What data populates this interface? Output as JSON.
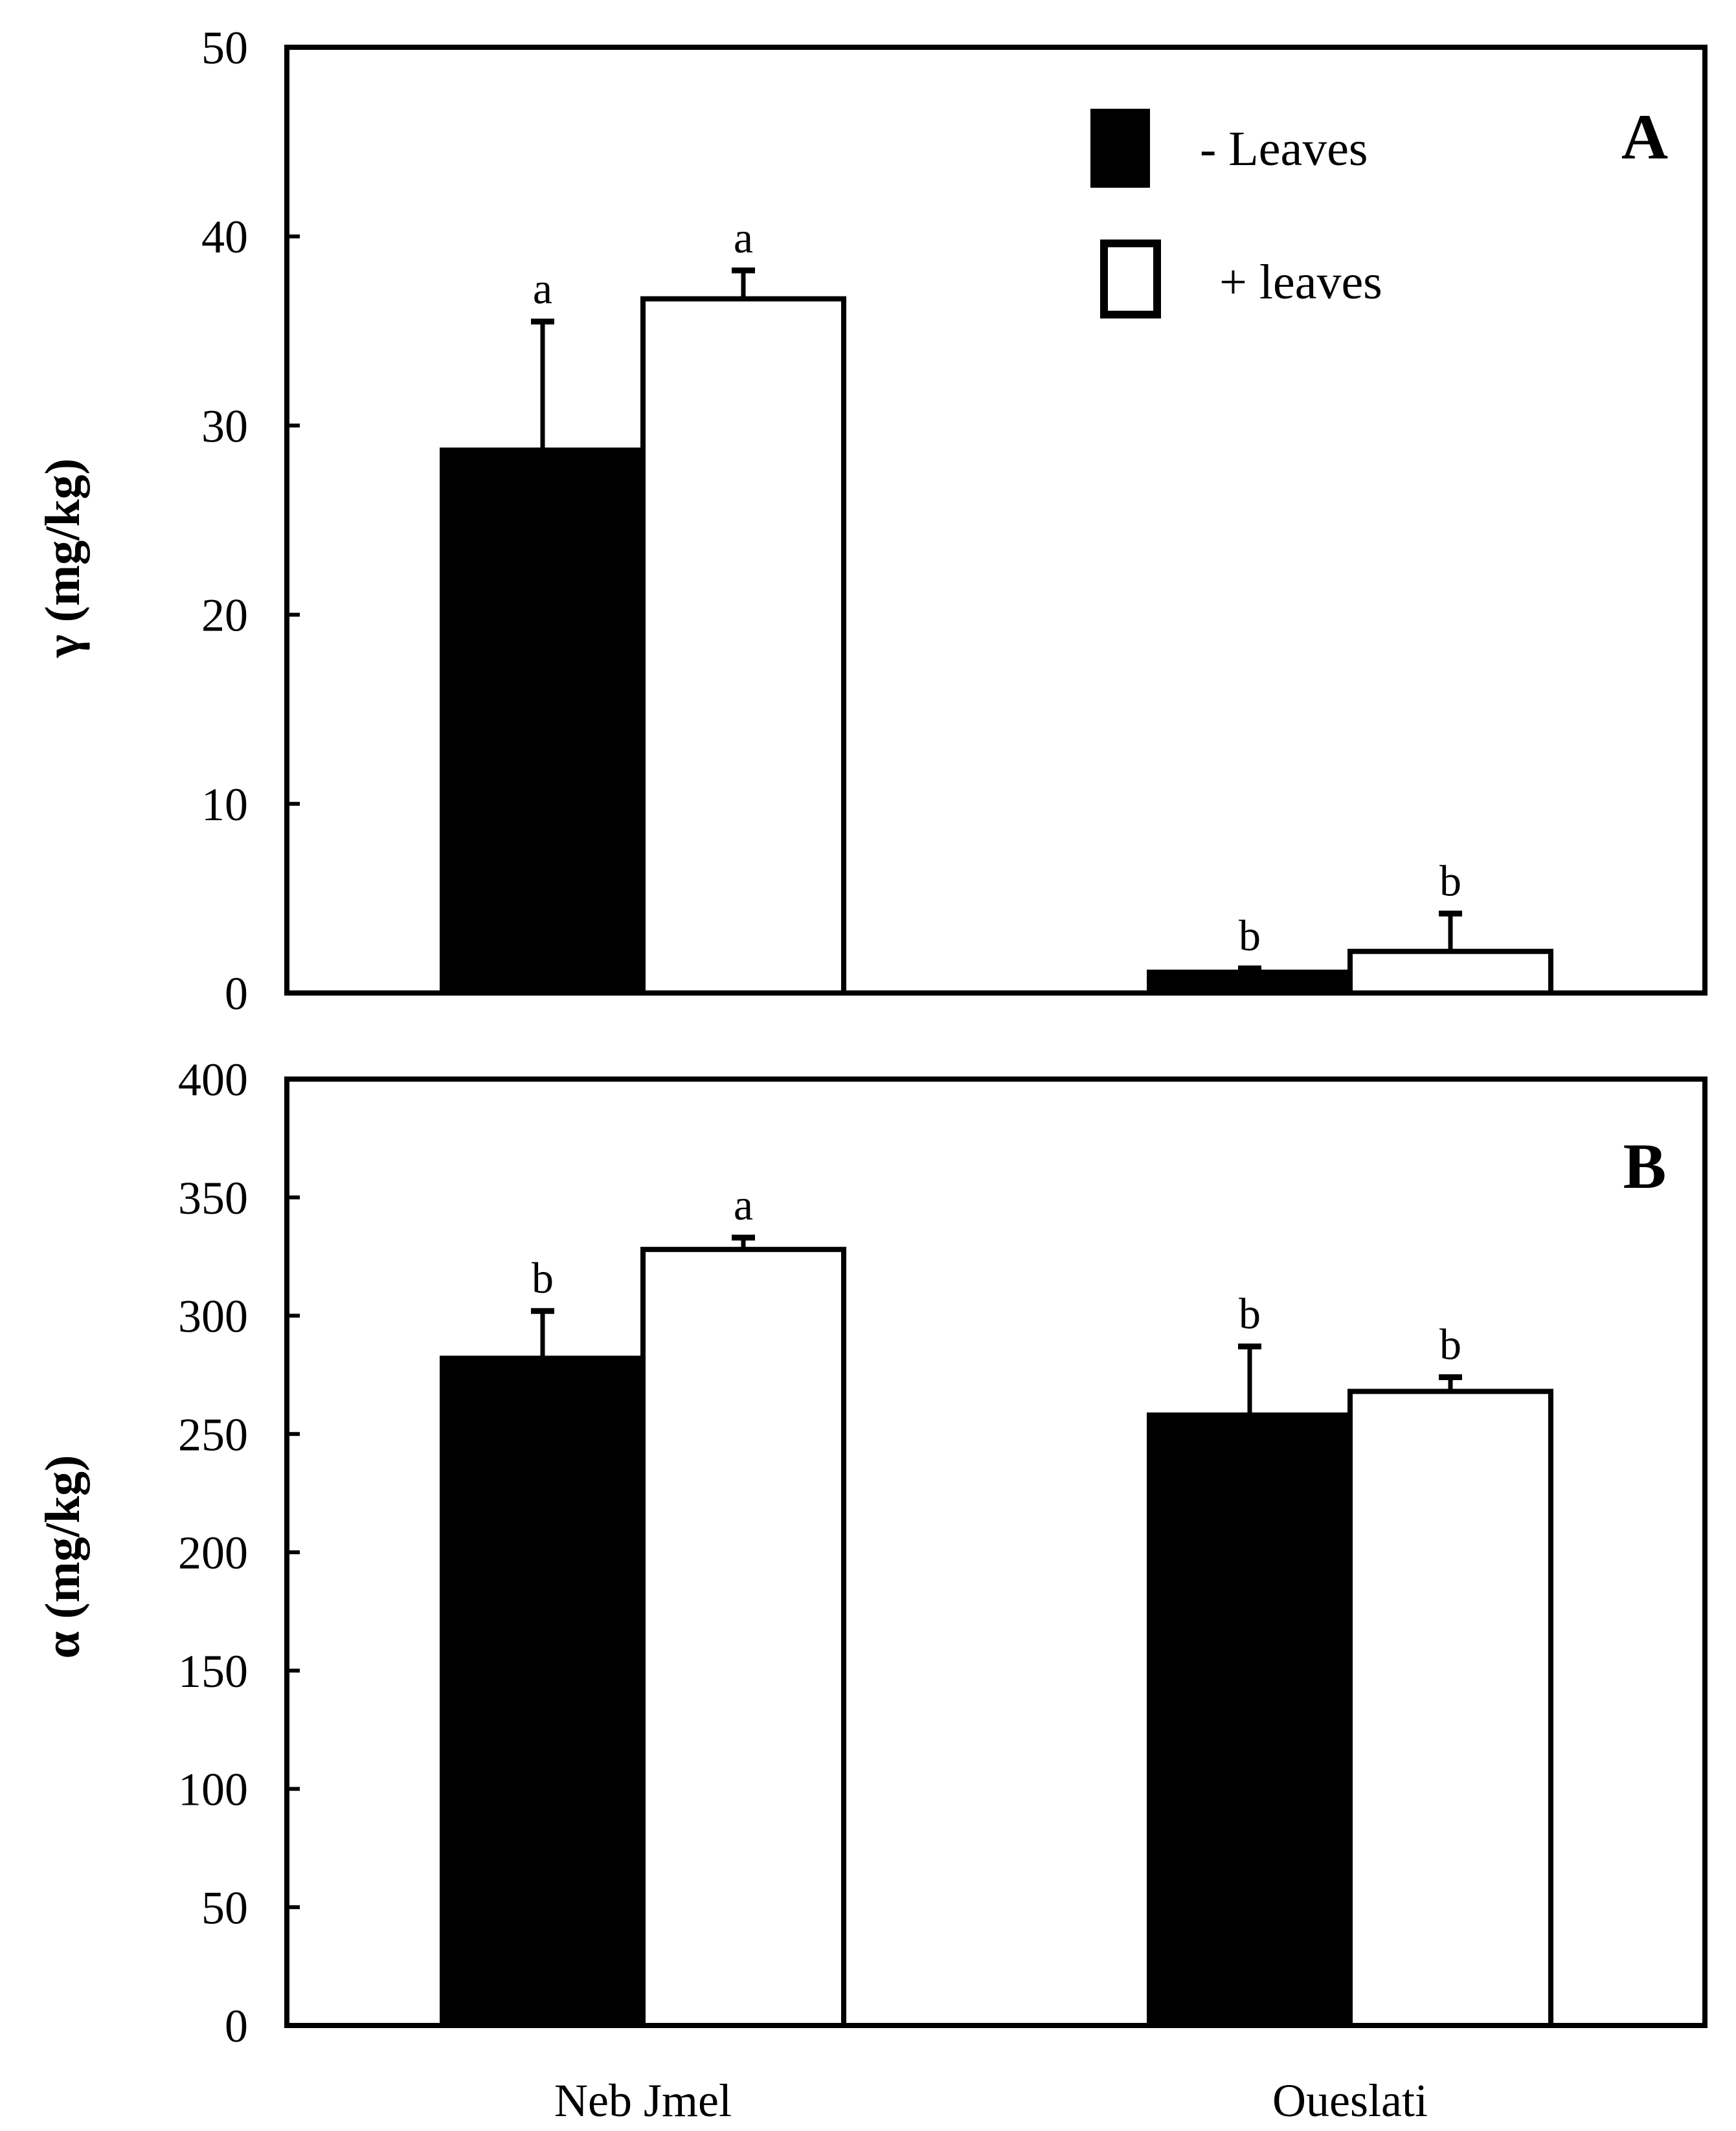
{
  "colors": {
    "minus_leaves_fill": "#000000",
    "plus_leaves_fill": "#ffffff",
    "axis": "#000000"
  },
  "legend": {
    "items": [
      {
        "label": "- Leaves",
        "fill": "#000000"
      },
      {
        "label": "+ leaves",
        "fill": "#ffffff"
      }
    ]
  },
  "chart_data": [
    {
      "type": "bar",
      "panel_label": "A",
      "ylabel": "γ (mg/kg)",
      "xlabel": "",
      "ylim": [
        0,
        50
      ],
      "yticks": [
        0,
        10,
        20,
        30,
        40,
        50
      ],
      "categories": [
        "Neb Jmel",
        "Oueslati"
      ],
      "show_category_labels": false,
      "series": [
        {
          "name": "- Leaves",
          "values": [
            28.7,
            1.1
          ],
          "errors": [
            6.8,
            0.2
          ],
          "letters": [
            "a",
            "b"
          ]
        },
        {
          "name": "+ leaves",
          "values": [
            36.7,
            2.2
          ],
          "errors": [
            1.5,
            2.0
          ],
          "letters": [
            "a",
            "b"
          ]
        }
      ]
    },
    {
      "type": "bar",
      "panel_label": "B",
      "ylabel": "α (mg/kg)",
      "xlabel": "",
      "ylim": [
        0,
        400
      ],
      "yticks": [
        0,
        50,
        100,
        150,
        200,
        250,
        300,
        350,
        400
      ],
      "categories": [
        "Neb Jmel",
        "Oueslati"
      ],
      "show_category_labels": true,
      "series": [
        {
          "name": "- Leaves",
          "values": [
            282,
            258
          ],
          "errors": [
            20,
            29
          ],
          "letters": [
            "b",
            "b"
          ]
        },
        {
          "name": "+ leaves",
          "values": [
            328,
            268
          ],
          "errors": [
            5,
            6
          ],
          "letters": [
            "a",
            "b"
          ]
        }
      ]
    }
  ]
}
